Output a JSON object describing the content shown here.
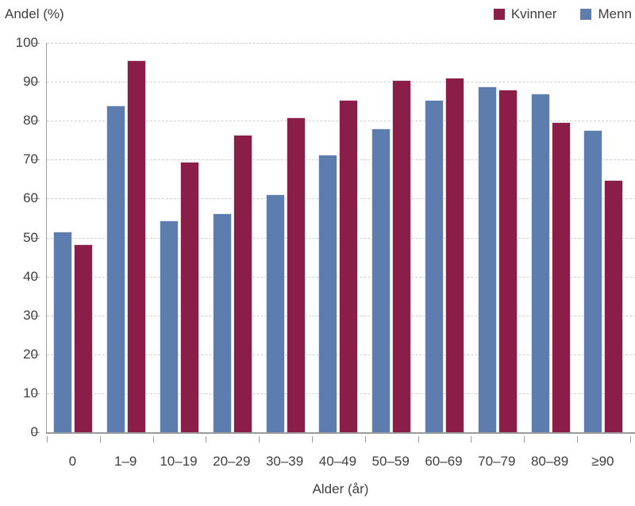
{
  "figure": {
    "y_axis_title": "Andel (%)",
    "x_axis_title": "Alder (år)"
  },
  "chart_data": {
    "type": "bar",
    "title": "",
    "ylabel": "Andel (%)",
    "xlabel": "Alder (år)",
    "ylim": [
      0,
      100
    ],
    "ytick_step": 10,
    "grid": "horizontal-dashed",
    "legend_position": "top-right",
    "categories": [
      "0",
      "1–9",
      "10–19",
      "20–29",
      "30–39",
      "40–49",
      "50–59",
      "60–69",
      "70–79",
      "80–89",
      "≥90"
    ],
    "bar_order_in_group": [
      "Menn",
      "Kvinner"
    ],
    "series": [
      {
        "name": "Kvinner",
        "color": "#8A1E49",
        "values": [
          48.3,
          95.6,
          69.4,
          76.3,
          80.8,
          85.4,
          90.5,
          91.1,
          88.0,
          79.6,
          64.7
        ]
      },
      {
        "name": "Menn",
        "color": "#5C7DAE",
        "values": [
          51.6,
          84.0,
          54.3,
          56.2,
          61.1,
          71.2,
          78.0,
          85.4,
          88.8,
          87.0,
          77.7
        ]
      }
    ],
    "colors": {
      "grid": "#CFCFCF",
      "axis": "#9B9B9B",
      "text": "#3F3F3F"
    }
  }
}
